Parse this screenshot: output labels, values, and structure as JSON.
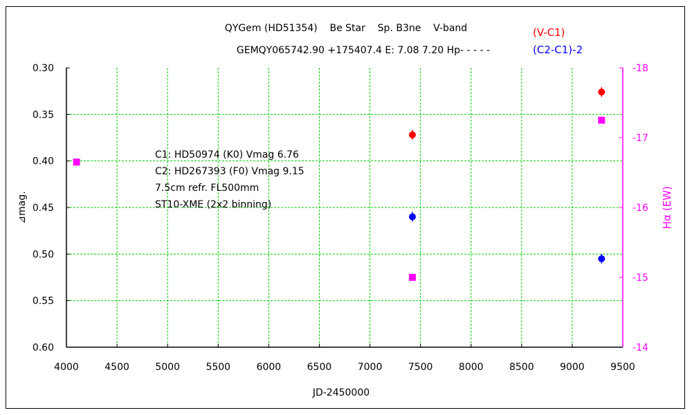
{
  "chart_data": {
    "type": "scatter",
    "title": "QYGem (HD51354)    Be Star    Sp. B3ne    V-band",
    "subtitle": "GEMQY065742.90 +175407.4 E: 7.08 7.20 Hp- - - - -",
    "xlabel": "JD-2450000",
    "ylabel": "⊿mag.",
    "y2label": "Hα (EW)",
    "xlim": [
      4000,
      9500
    ],
    "ylim": [
      0.6,
      0.3
    ],
    "y2lim": [
      -14,
      -18
    ],
    "x_ticks": [
      "4000",
      "4500",
      "5000",
      "5500",
      "6000",
      "6500",
      "7000",
      "7500",
      "8000",
      "8500",
      "9000",
      "9500"
    ],
    "y_ticks": [
      "0.30",
      "0.35",
      "0.40",
      "0.45",
      "0.50",
      "0.55",
      "0.60"
    ],
    "y2_ticks": [
      "-18",
      "-17",
      "-16",
      "-15",
      "-14"
    ],
    "grid": true,
    "legend_position": "top-right",
    "series": [
      {
        "name": "(V-C1)",
        "color": "#ff0000",
        "marker": "circle",
        "axis": "left",
        "points": [
          [
            7420,
            0.372
          ],
          [
            9290,
            0.326
          ]
        ]
      },
      {
        "name": "(C2-C1)-2",
        "color": "#0000ff",
        "marker": "circle",
        "axis": "left",
        "points": [
          [
            7420,
            0.46
          ],
          [
            9290,
            0.505
          ]
        ]
      },
      {
        "name": "",
        "color": "#ff00ff",
        "marker": "square",
        "axis": "right",
        "points": [
          [
            4100,
            -16.65
          ],
          [
            7420,
            -15.0
          ],
          [
            9290,
            -17.25
          ]
        ]
      }
    ],
    "annotations": [
      "C1: HD50974 (K0) Vmag 6.76",
      "C2: HD267393 (F0) Vmag 9.15",
      "7.5cm refr. FL500mm",
      "ST10-XME (2x2 binning)"
    ]
  }
}
